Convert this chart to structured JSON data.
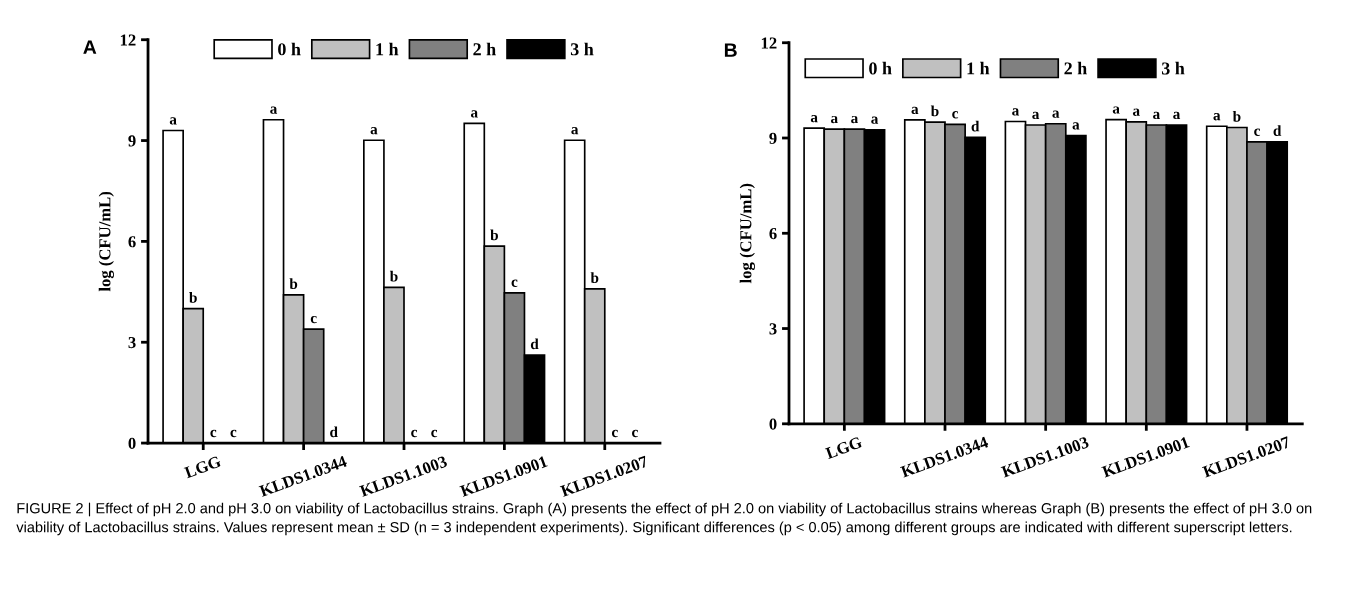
{
  "chart_data": [
    {
      "type": "bar",
      "title": "A",
      "ylabel": "log (CFU/mL)",
      "categories": [
        "LGG",
        "KLDS1.0344",
        "KLDS1.1003",
        "KLDS1.0901",
        "KLDS1.0207"
      ],
      "ylim": [
        0,
        12
      ],
      "yticks": [
        0,
        3,
        6,
        9,
        12
      ],
      "legend": "top",
      "grid": false,
      "series": [
        {
          "name": "0 h",
          "color": "#ffffff",
          "values": [
            9.3,
            9.62,
            9.01,
            9.51,
            9.01
          ],
          "value_labels": [
            "a",
            "a",
            "a",
            "a",
            "a"
          ]
        },
        {
          "name": "1 h",
          "color": "#c0c0c0",
          "values": [
            4.0,
            4.41,
            4.63,
            5.86,
            4.59
          ],
          "value_labels": [
            "b",
            "b",
            "b",
            "b",
            "b"
          ]
        },
        {
          "name": "2 h",
          "color": "#808080",
          "values": [
            0,
            3.39,
            0,
            4.47,
            0
          ],
          "value_labels": [
            "c",
            "c",
            "c",
            "c",
            "c"
          ]
        },
        {
          "name": "3 h",
          "color": "#000000",
          "values": [
            0,
            0,
            0,
            2.62,
            0
          ],
          "value_labels": [
            "c",
            "d",
            "c",
            "d",
            "c"
          ]
        }
      ]
    },
    {
      "type": "bar",
      "title": "B",
      "ylabel": "log (CFU/mL)",
      "categories": [
        "LGG",
        "KLDS1.0344",
        "KLDS1.1003",
        "KLDS1.0901",
        "KLDS1.0207"
      ],
      "ylim": [
        0,
        12
      ],
      "yticks": [
        0,
        3,
        6,
        9,
        12
      ],
      "legend": "top left",
      "grid": false,
      "series": [
        {
          "name": "0 h",
          "color": "#ffffff",
          "values": [
            9.31,
            9.57,
            9.52,
            9.58,
            9.37
          ],
          "value_labels": [
            "a",
            "a",
            "a",
            "a",
            "a"
          ]
        },
        {
          "name": "1 h",
          "color": "#c0c0c0",
          "values": [
            9.28,
            9.5,
            9.41,
            9.51,
            9.33
          ],
          "value_labels": [
            "a",
            "b",
            "a",
            "a",
            "b"
          ]
        },
        {
          "name": "2 h",
          "color": "#808080",
          "values": [
            9.28,
            9.43,
            9.45,
            9.41,
            8.88
          ],
          "value_labels": [
            "a",
            "c",
            "a",
            "a",
            "c"
          ]
        },
        {
          "name": "3 h",
          "color": "#000000",
          "values": [
            9.26,
            9.02,
            9.08,
            9.41,
            8.88
          ],
          "value_labels": [
            "a",
            "d",
            "a",
            "a",
            "d"
          ]
        }
      ],
      "annotations": [
        "FIGURE 2 | Effect of pH 2.0 and pH 3.0 on viability of Lactobacillus strains. Graph (A) presents the effect of pH 2.0 on viability of Lactobacillus strains whereas Graph (B) presents the effect of pH 3.0 on viability of Lactobacillus strains. Values represent mean ± SD (n = 3 independent experiments). Significant differences (p < 0.05) among different groups are indicated with different superscript letters."
      ]
    }
  ]
}
